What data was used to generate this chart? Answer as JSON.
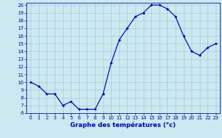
{
  "x": [
    0,
    1,
    2,
    3,
    4,
    5,
    6,
    7,
    8,
    9,
    10,
    11,
    12,
    13,
    14,
    15,
    16,
    17,
    18,
    19,
    20,
    21,
    22,
    23
  ],
  "y": [
    10.0,
    9.5,
    8.5,
    8.5,
    7.0,
    7.5,
    6.5,
    6.5,
    6.5,
    8.5,
    12.5,
    15.5,
    17.0,
    18.5,
    19.0,
    20.0,
    20.0,
    19.5,
    18.5,
    16.0,
    14.0,
    13.5,
    14.5,
    15.0
  ],
  "line_color": "#0000cc",
  "marker": "D",
  "marker_size": 1.8,
  "bg_color": "#cce8f0",
  "grid_color": "#a0bfc8",
  "xlabel": "Graphe des températures (°c)",
  "xlabel_color": "#0000cc",
  "ylim": [
    6,
    20
  ],
  "xlim": [
    -0.5,
    23.5
  ],
  "yticks": [
    6,
    7,
    8,
    9,
    10,
    11,
    12,
    13,
    14,
    15,
    16,
    17,
    18,
    19,
    20
  ],
  "xticks": [
    0,
    1,
    2,
    3,
    4,
    5,
    6,
    7,
    8,
    9,
    10,
    11,
    12,
    13,
    14,
    15,
    16,
    17,
    18,
    19,
    20,
    21,
    22,
    23
  ],
  "tick_fontsize": 5.0,
  "label_fontsize": 6.5,
  "line_width": 0.9
}
